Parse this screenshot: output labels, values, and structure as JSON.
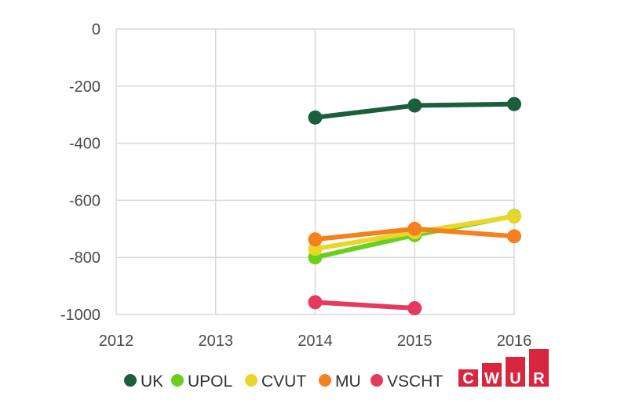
{
  "chart_data": {
    "type": "line",
    "title": "",
    "xlabel": "",
    "ylabel": "",
    "x": [
      2012,
      2013,
      2014,
      2015,
      2016
    ],
    "xlim": [
      2012,
      2016
    ],
    "ylim": [
      -1000,
      0
    ],
    "y_ticks": [
      0,
      -200,
      -400,
      -600,
      -800,
      -1000
    ],
    "x_tick_labels": [
      "2012",
      "2013",
      "2014",
      "2015",
      "2016"
    ],
    "y_tick_labels": [
      "0",
      "-200",
      "-400",
      "-600",
      "-800",
      "-1000"
    ],
    "grid": true,
    "legend_position": "bottom",
    "series": [
      {
        "name": "UK",
        "color": "#1b5e3b",
        "values": [
          null,
          null,
          -310,
          -268,
          -263
        ]
      },
      {
        "name": "UPOL",
        "color": "#6ccf1e",
        "values": [
          null,
          null,
          -800,
          -722,
          -655
        ]
      },
      {
        "name": "CVUT",
        "color": "#e8d62a",
        "values": [
          null,
          null,
          -770,
          -712,
          -657
        ]
      },
      {
        "name": "MU",
        "color": "#f5801e",
        "values": [
          null,
          null,
          -737,
          -700,
          -726
        ]
      },
      {
        "name": "VSCHT",
        "color": "#e53a5f",
        "values": [
          null,
          null,
          -957,
          -978,
          null
        ]
      }
    ]
  },
  "logo": {
    "letters": [
      "C",
      "W",
      "U",
      "R"
    ],
    "color": "#d7263d"
  }
}
